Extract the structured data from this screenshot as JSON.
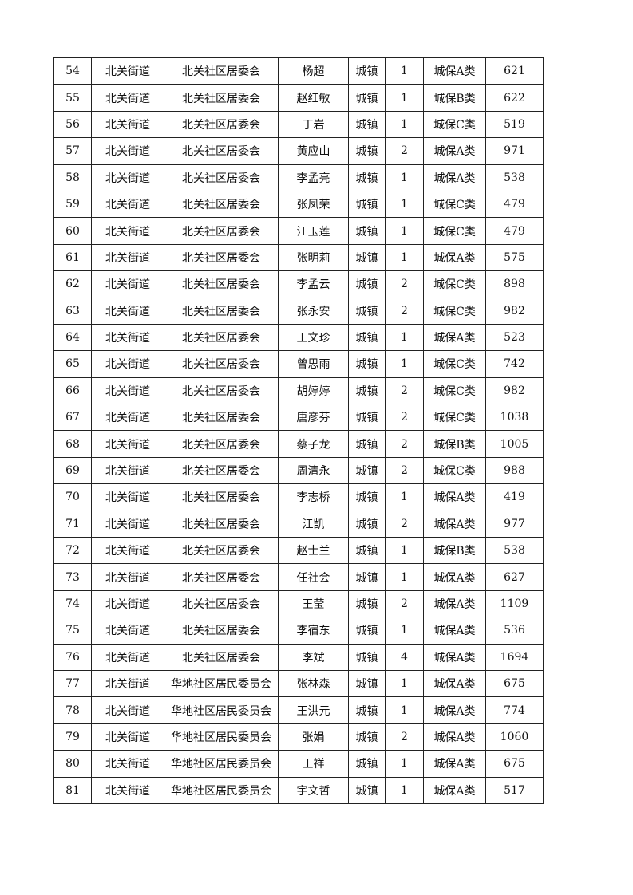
{
  "table": {
    "rows": [
      [
        "54",
        "北关街道",
        "北关社区居委会",
        "杨超",
        "城镇",
        "1",
        "城保A类",
        "621"
      ],
      [
        "55",
        "北关街道",
        "北关社区居委会",
        "赵红敏",
        "城镇",
        "1",
        "城保B类",
        "622"
      ],
      [
        "56",
        "北关街道",
        "北关社区居委会",
        "丁岩",
        "城镇",
        "1",
        "城保C类",
        "519"
      ],
      [
        "57",
        "北关街道",
        "北关社区居委会",
        "黄应山",
        "城镇",
        "2",
        "城保A类",
        "971"
      ],
      [
        "58",
        "北关街道",
        "北关社区居委会",
        "李孟亮",
        "城镇",
        "1",
        "城保A类",
        "538"
      ],
      [
        "59",
        "北关街道",
        "北关社区居委会",
        "张凤荣",
        "城镇",
        "1",
        "城保C类",
        "479"
      ],
      [
        "60",
        "北关街道",
        "北关社区居委会",
        "江玉莲",
        "城镇",
        "1",
        "城保C类",
        "479"
      ],
      [
        "61",
        "北关街道",
        "北关社区居委会",
        "张明莉",
        "城镇",
        "1",
        "城保A类",
        "575"
      ],
      [
        "62",
        "北关街道",
        "北关社区居委会",
        "李孟云",
        "城镇",
        "2",
        "城保C类",
        "898"
      ],
      [
        "63",
        "北关街道",
        "北关社区居委会",
        "张永安",
        "城镇",
        "2",
        "城保C类",
        "982"
      ],
      [
        "64",
        "北关街道",
        "北关社区居委会",
        "王文珍",
        "城镇",
        "1",
        "城保A类",
        "523"
      ],
      [
        "65",
        "北关街道",
        "北关社区居委会",
        "曾思雨",
        "城镇",
        "1",
        "城保C类",
        "742"
      ],
      [
        "66",
        "北关街道",
        "北关社区居委会",
        "胡婷婷",
        "城镇",
        "2",
        "城保C类",
        "982"
      ],
      [
        "67",
        "北关街道",
        "北关社区居委会",
        "唐彦芬",
        "城镇",
        "2",
        "城保C类",
        "1038"
      ],
      [
        "68",
        "北关街道",
        "北关社区居委会",
        "蔡子龙",
        "城镇",
        "2",
        "城保B类",
        "1005"
      ],
      [
        "69",
        "北关街道",
        "北关社区居委会",
        "周清永",
        "城镇",
        "2",
        "城保C类",
        "988"
      ],
      [
        "70",
        "北关街道",
        "北关社区居委会",
        "李志桥",
        "城镇",
        "1",
        "城保A类",
        "419"
      ],
      [
        "71",
        "北关街道",
        "北关社区居委会",
        "江凯",
        "城镇",
        "2",
        "城保A类",
        "977"
      ],
      [
        "72",
        "北关街道",
        "北关社区居委会",
        "赵士兰",
        "城镇",
        "1",
        "城保B类",
        "538"
      ],
      [
        "73",
        "北关街道",
        "北关社区居委会",
        "任社会",
        "城镇",
        "1",
        "城保A类",
        "627"
      ],
      [
        "74",
        "北关街道",
        "北关社区居委会",
        "王莹",
        "城镇",
        "2",
        "城保A类",
        "1109"
      ],
      [
        "75",
        "北关街道",
        "北关社区居委会",
        "李宿东",
        "城镇",
        "1",
        "城保A类",
        "536"
      ],
      [
        "76",
        "北关街道",
        "北关社区居委会",
        "李斌",
        "城镇",
        "4",
        "城保A类",
        "1694"
      ],
      [
        "77",
        "北关街道",
        "华地社区居民委员会",
        "张林森",
        "城镇",
        "1",
        "城保A类",
        "675"
      ],
      [
        "78",
        "北关街道",
        "华地社区居民委员会",
        "王洪元",
        "城镇",
        "1",
        "城保A类",
        "774"
      ],
      [
        "79",
        "北关街道",
        "华地社区居民委员会",
        "张娟",
        "城镇",
        "2",
        "城保A类",
        "1060"
      ],
      [
        "80",
        "北关街道",
        "华地社区居民委员会",
        "王祥",
        "城镇",
        "1",
        "城保A类",
        "675"
      ],
      [
        "81",
        "北关街道",
        "华地社区居民委员会",
        "宇文哲",
        "城镇",
        "1",
        "城保A类",
        "517"
      ]
    ]
  }
}
